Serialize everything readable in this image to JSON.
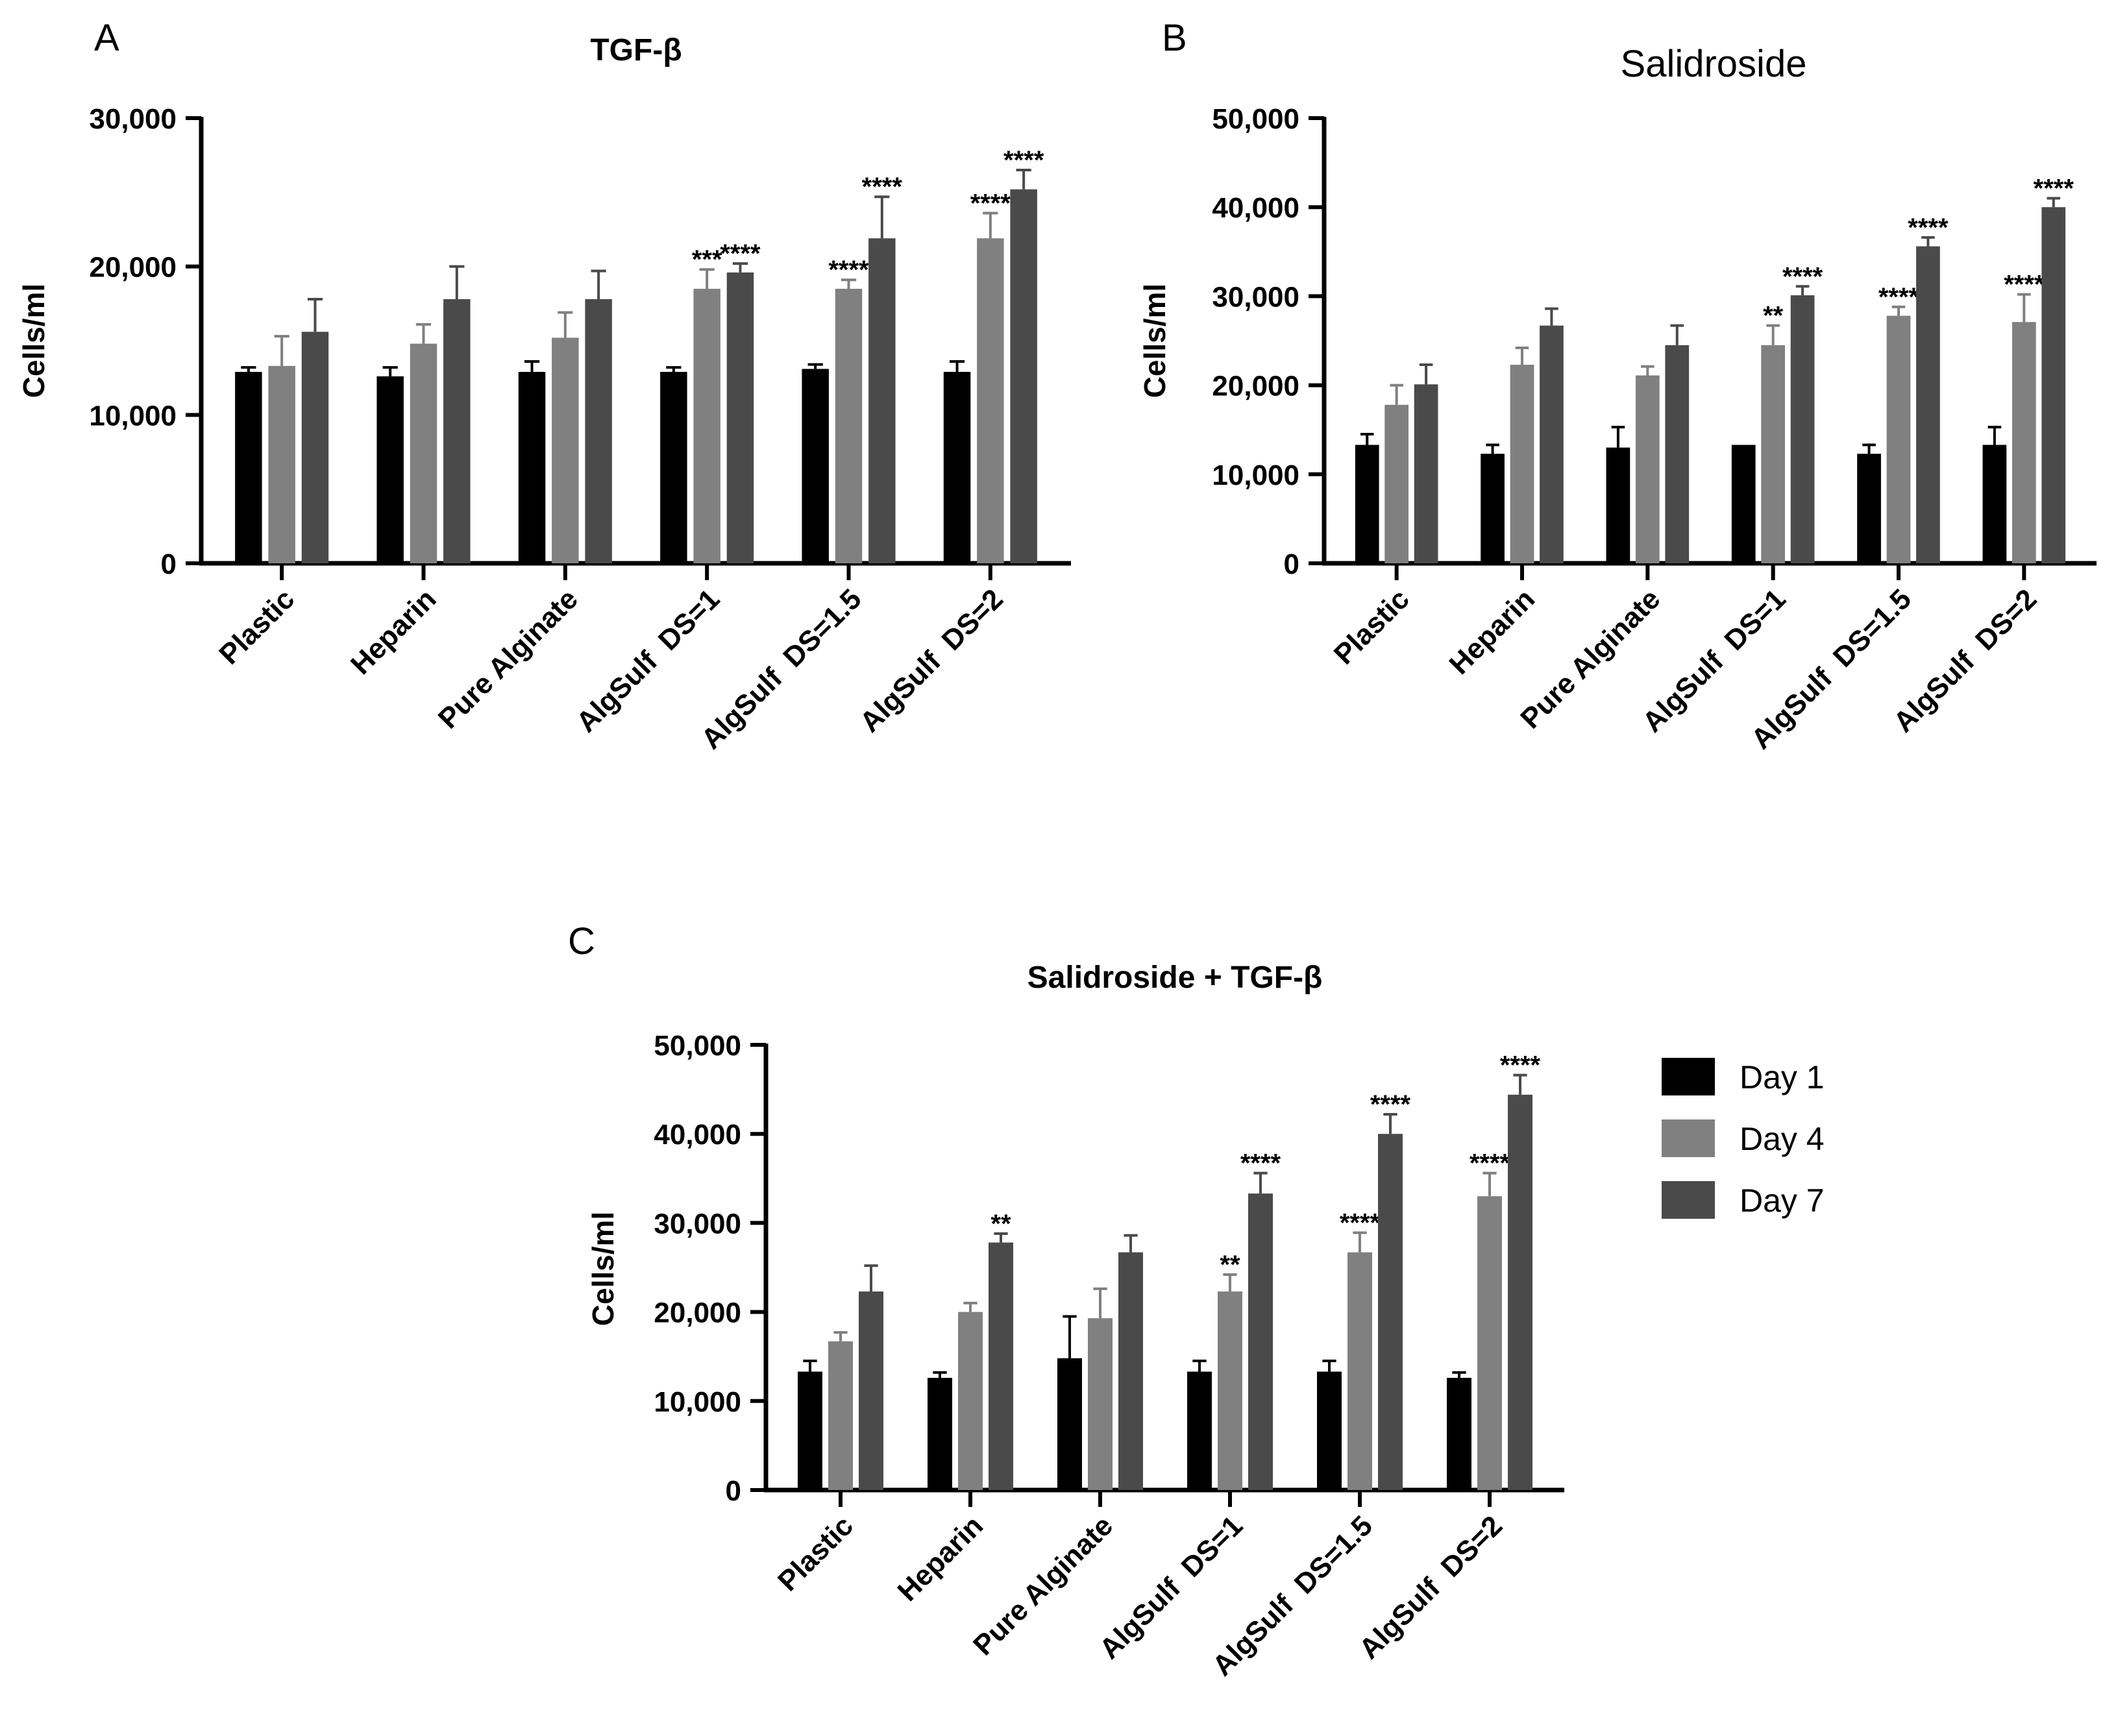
{
  "legend": [
    {
      "label": "Day 1",
      "color": "#000000"
    },
    {
      "label": "Day 4",
      "color": "#808080"
    },
    {
      "label": "Day 7",
      "color": "#4a4a4a"
    }
  ],
  "chart_data": [
    {
      "type": "bar",
      "panel": "A",
      "title": "TGF-β",
      "ylabel": "Cells/ml",
      "ylim": [
        0,
        30000
      ],
      "yticks": [
        "0",
        "10,000",
        "20,000",
        "30,000"
      ],
      "categories": [
        "Plastic",
        "Heparin",
        "Pure Alginate",
        "AlgSulf  DS=1",
        "AlgSulf  DS=1.5",
        "AlgSulf  DS=2"
      ],
      "series": [
        {
          "name": "Day 1",
          "values": [
            12900,
            12600,
            12900,
            12900,
            13100,
            12900
          ],
          "errors": [
            300,
            600,
            700,
            300,
            300,
            700
          ],
          "annotations": [
            "",
            "",
            "",
            "",
            "",
            ""
          ]
        },
        {
          "name": "Day 4",
          "values": [
            13300,
            14800,
            15200,
            18500,
            18500,
            21900
          ],
          "errors": [
            2000,
            1300,
            1700,
            1300,
            600,
            1700
          ],
          "annotations": [
            "",
            "",
            "",
            "***",
            "****",
            "****"
          ]
        },
        {
          "name": "Day 7",
          "values": [
            15600,
            17800,
            17800,
            19600,
            21900,
            25200
          ],
          "errors": [
            2200,
            2200,
            1900,
            600,
            2800,
            1300
          ],
          "annotations": [
            "",
            "",
            "",
            "****",
            "****",
            "****"
          ]
        }
      ]
    },
    {
      "type": "bar",
      "panel": "B",
      "title": "Salidroside",
      "ylabel": "Cells/ml",
      "ylim": [
        0,
        50000
      ],
      "yticks": [
        "0",
        "10,000",
        "20,000",
        "30,000",
        "40,000",
        "50,000"
      ],
      "categories": [
        "Plastic",
        "Heparin",
        "Pure Alginate",
        "AlgSulf  DS=1",
        "AlgSulf  DS=1.5",
        "AlgSulf  DS=2"
      ],
      "series": [
        {
          "name": "Day 1",
          "values": [
            13300,
            12300,
            13000,
            13300,
            12300,
            13300
          ],
          "errors": [
            1200,
            1000,
            2300,
            0,
            1000,
            2000
          ],
          "annotations": [
            "",
            "",
            "",
            "",
            "",
            ""
          ]
        },
        {
          "name": "Day 4",
          "values": [
            17800,
            22300,
            21100,
            24500,
            27800,
            27100
          ],
          "errors": [
            2200,
            1900,
            1000,
            2200,
            1000,
            3100
          ],
          "annotations": [
            "",
            "",
            "",
            "**",
            "****",
            "****"
          ]
        },
        {
          "name": "Day 7",
          "values": [
            20100,
            26700,
            24500,
            30100,
            35600,
            40000
          ],
          "errors": [
            2200,
            1900,
            2200,
            1000,
            1000,
            1000
          ],
          "annotations": [
            "",
            "",
            "",
            "****",
            "****",
            "****"
          ]
        }
      ]
    },
    {
      "type": "bar",
      "panel": "C",
      "title": "Salidroside + TGF-β",
      "ylabel": "Cells/ml",
      "ylim": [
        0,
        50000
      ],
      "yticks": [
        "0",
        "10,000",
        "20,000",
        "30,000",
        "40,000",
        "50,000"
      ],
      "categories": [
        "Plastic",
        "Heparin",
        "Pure Alginate",
        "AlgSulf  DS=1",
        "AlgSulf  DS=1.5",
        "AlgSulf  DS=2"
      ],
      "series": [
        {
          "name": "Day 1",
          "values": [
            13300,
            12600,
            14800,
            13300,
            13300,
            12600
          ],
          "errors": [
            1200,
            600,
            4700,
            1200,
            1200,
            600
          ],
          "annotations": [
            "",
            "",
            "",
            "",
            "",
            ""
          ]
        },
        {
          "name": "Day 4",
          "values": [
            16700,
            20000,
            19300,
            22300,
            26700,
            33000
          ],
          "errors": [
            1000,
            1000,
            3300,
            1900,
            2200,
            2600
          ],
          "annotations": [
            "",
            "",
            "",
            "**",
            "****",
            "****"
          ]
        },
        {
          "name": "Day 7",
          "values": [
            22300,
            27800,
            26700,
            33300,
            40000,
            44400
          ],
          "errors": [
            2900,
            1000,
            1900,
            2300,
            2200,
            2200
          ],
          "annotations": [
            "",
            "**",
            "",
            "****",
            "****",
            "****"
          ]
        }
      ]
    }
  ]
}
